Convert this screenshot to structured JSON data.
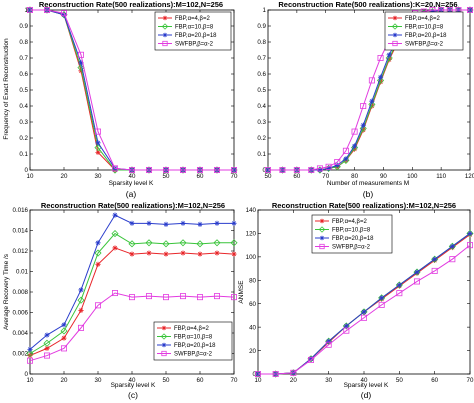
{
  "figure": {
    "background": "#ffffff",
    "series_styles": [
      {
        "color": "#e8262a",
        "marker": "star"
      },
      {
        "color": "#39c43a",
        "marker": "diamond"
      },
      {
        "color": "#2a3dcc",
        "marker": "star"
      },
      {
        "color": "#e23be0",
        "marker": "square"
      }
    ]
  },
  "chart_data": [
    {
      "id": "a",
      "type": "line",
      "panel_label": "(a)",
      "title": "Reconstruction Rate(500 realizations):M=102,N=256",
      "xlabel": "Sparsity level K",
      "ylabel": "Frequency of Exact Reconstruction",
      "xlim": [
        10,
        70
      ],
      "ylim": [
        0,
        1
      ],
      "xticks": [
        "10",
        "20",
        "30",
        "40",
        "50",
        "60",
        "70"
      ],
      "yticks": [
        "0",
        "0.1",
        "0.2",
        "0.3",
        "0.4",
        "0.5",
        "0.6",
        "0.7",
        "0.8",
        "0.9",
        "1"
      ],
      "grid": false,
      "legend_position": "top-right",
      "x": [
        10,
        15,
        20,
        25,
        30,
        35,
        40,
        45,
        50,
        55,
        60,
        65,
        70
      ],
      "series": [
        {
          "name": "FBP,α=4,β=2",
          "values": [
            1,
            1,
            0.97,
            0.62,
            0.11,
            0,
            0,
            0,
            0,
            0,
            0,
            0,
            0
          ]
        },
        {
          "name": "FBP,α=10,β=8",
          "values": [
            1,
            1,
            0.97,
            0.64,
            0.14,
            0,
            0,
            0,
            0,
            0,
            0,
            0,
            0
          ]
        },
        {
          "name": "FBP,α=20,β=18",
          "values": [
            1,
            1,
            0.97,
            0.67,
            0.17,
            0.01,
            0,
            0,
            0,
            0,
            0,
            0,
            0
          ]
        },
        {
          "name": "SWFBP,β=α-2",
          "values": [
            1,
            1,
            0.98,
            0.72,
            0.24,
            0.01,
            0,
            0,
            0,
            0,
            0,
            0,
            0
          ]
        }
      ]
    },
    {
      "id": "b",
      "type": "line",
      "panel_label": "(b)",
      "title": "Reconstruction Rate(500 realizations):K=20,N=256",
      "xlabel": "Number of measurements M",
      "ylabel": "",
      "xlim": [
        50,
        120
      ],
      "ylim": [
        0,
        1
      ],
      "xticks": [
        "50",
        "60",
        "70",
        "80",
        "90",
        "100",
        "110",
        "120"
      ],
      "yticks": [
        "0",
        "0.1",
        "0.2",
        "0.3",
        "0.4",
        "0.5",
        "0.6",
        "0.7",
        "0.8",
        "0.9",
        "1"
      ],
      "grid": false,
      "legend_position": "top-left",
      "x": [
        50,
        55,
        60,
        65,
        68,
        71,
        74,
        77,
        80,
        83,
        86,
        89,
        92,
        95,
        98,
        101,
        104,
        107,
        110,
        113,
        116,
        120
      ],
      "series": [
        {
          "name": "FBP,α=4,β=2",
          "values": [
            0,
            0,
            0,
            0,
            0,
            0.01,
            0.02,
            0.06,
            0.13,
            0.25,
            0.4,
            0.55,
            0.69,
            0.8,
            0.89,
            0.94,
            0.97,
            0.99,
            1,
            1,
            1,
            1
          ]
        },
        {
          "name": "FBP,α=10,β=8",
          "values": [
            0,
            0,
            0,
            0,
            0,
            0.01,
            0.02,
            0.06,
            0.14,
            0.26,
            0.41,
            0.56,
            0.7,
            0.81,
            0.89,
            0.95,
            0.98,
            0.99,
            1,
            1,
            1,
            1
          ]
        },
        {
          "name": "FBP,α=20,β=18",
          "values": [
            0,
            0,
            0,
            0,
            0,
            0.01,
            0.03,
            0.07,
            0.15,
            0.28,
            0.43,
            0.58,
            0.72,
            0.83,
            0.9,
            0.95,
            0.98,
            0.99,
            1,
            1,
            1,
            1
          ]
        },
        {
          "name": "SWFBP,β=α-2",
          "values": [
            0,
            0,
            0,
            0,
            0.01,
            0.02,
            0.05,
            0.12,
            0.24,
            0.4,
            0.56,
            0.7,
            0.81,
            0.89,
            0.95,
            0.98,
            0.99,
            1,
            1,
            1,
            1,
            1
          ]
        }
      ]
    },
    {
      "id": "c",
      "type": "line",
      "panel_label": "(c)",
      "title": "Reconstruction Rate(500 realizations):M=102,N=256",
      "xlabel": "Sparsity level K",
      "ylabel": "Average Recovery Time /s",
      "xlim": [
        10,
        70
      ],
      "ylim": [
        0,
        0.016
      ],
      "xticks": [
        "10",
        "20",
        "30",
        "40",
        "50",
        "60",
        "70"
      ],
      "yticks": [
        "0",
        "0.002",
        "0.004",
        "0.006",
        "0.008",
        "0.01",
        "0.012",
        "0.014",
        "0.016"
      ],
      "grid": false,
      "legend_position": "bottom-right",
      "x": [
        10,
        15,
        20,
        25,
        30,
        35,
        40,
        45,
        50,
        55,
        60,
        65,
        70
      ],
      "series": [
        {
          "name": "FBP,α=4,β=2",
          "values": [
            0.0018,
            0.0025,
            0.0035,
            0.0062,
            0.0107,
            0.0123,
            0.0117,
            0.0118,
            0.0117,
            0.0118,
            0.0117,
            0.0118,
            0.0117
          ]
        },
        {
          "name": "FBP,α=10,β=8",
          "values": [
            0.002,
            0.003,
            0.0042,
            0.0072,
            0.0118,
            0.0137,
            0.0127,
            0.0128,
            0.0127,
            0.0128,
            0.0127,
            0.0128,
            0.0128
          ]
        },
        {
          "name": "FBP,α=20,β=18",
          "values": [
            0.0024,
            0.0038,
            0.0048,
            0.0082,
            0.0128,
            0.0155,
            0.0147,
            0.0147,
            0.0146,
            0.0147,
            0.0146,
            0.0147,
            0.0147
          ]
        },
        {
          "name": "SWFBP,β=α-2",
          "values": [
            0.0013,
            0.0018,
            0.0025,
            0.0045,
            0.0067,
            0.0079,
            0.0075,
            0.0076,
            0.0075,
            0.0076,
            0.0075,
            0.0076,
            0.0075
          ]
        }
      ]
    },
    {
      "id": "d",
      "type": "line",
      "panel_label": "(d)",
      "title": "Reconstruction Rate(500 realizations):M=102,N=256",
      "xlabel": "Sparsity level K",
      "ylabel": "ANMSE",
      "xlim": [
        10,
        70
      ],
      "ylim": [
        0,
        140
      ],
      "xticks": [
        "10",
        "20",
        "30",
        "40",
        "50",
        "60",
        "70"
      ],
      "yticks": [
        "0",
        "20",
        "40",
        "60",
        "80",
        "100",
        "120",
        "140"
      ],
      "grid": false,
      "legend_position": "top-left",
      "x": [
        10,
        15,
        20,
        25,
        30,
        35,
        40,
        45,
        50,
        55,
        60,
        65,
        70
      ],
      "series": [
        {
          "name": "FBP,α=4,β=2",
          "values": [
            0,
            0,
            1,
            13,
            27,
            41,
            53,
            64,
            75,
            86,
            97,
            108,
            119
          ]
        },
        {
          "name": "FBP,α=10,β=8",
          "values": [
            0,
            0,
            1,
            13,
            28,
            41,
            53,
            65,
            76,
            87,
            98,
            109,
            120
          ]
        },
        {
          "name": "FBP,α=20,β=18",
          "values": [
            0,
            0,
            1,
            13,
            28,
            41,
            53,
            65,
            76,
            87,
            98,
            109,
            120
          ]
        },
        {
          "name": "SWFBP,β=α-2",
          "values": [
            0,
            0,
            1,
            12,
            25,
            37,
            48,
            59,
            69,
            79,
            88,
            98,
            110
          ]
        }
      ]
    }
  ]
}
